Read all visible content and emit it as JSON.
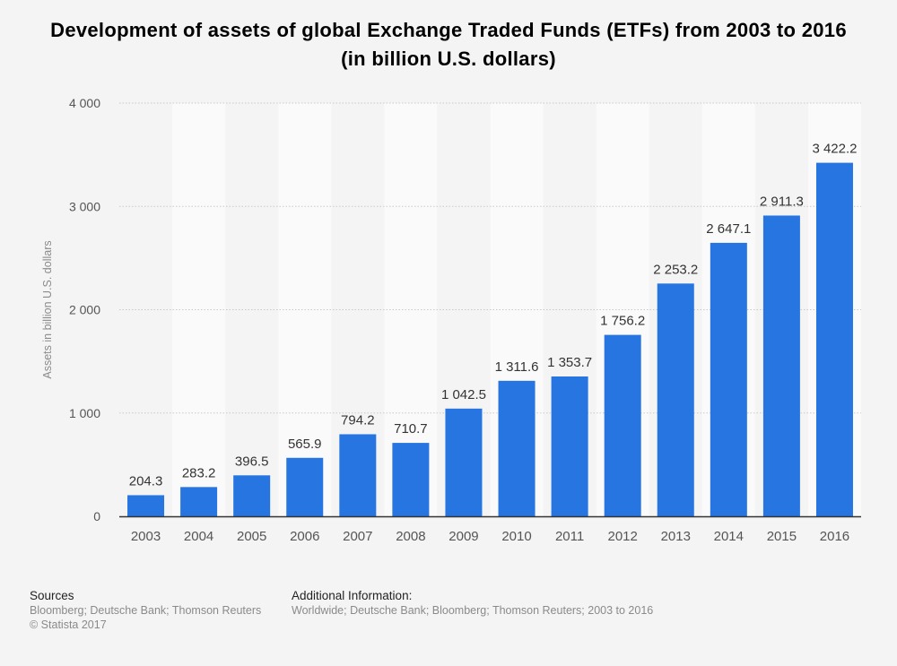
{
  "title": "Development of assets of global Exchange Traded Funds (ETFs) from 2003 to 2016 (in billion U.S. dollars)",
  "footer": {
    "sources_heading": "Sources",
    "sources_text": "Bloomberg; Deutsche Bank; Thomson Reuters",
    "copyright": "© Statista 2017",
    "additional_heading": "Additional Information:",
    "additional_text": "Worldwide; Deutsche Bank; Bloomberg; Thomson Reuters; 2003 to 2016"
  },
  "colors": {
    "bar": "#2775e0",
    "band": "#fafafa",
    "grid": "#c9c9c9",
    "axis": "#333333",
    "tick_text": "#555555",
    "label_text": "#333333",
    "ylabel_text": "#8a8a8a"
  },
  "chart_data": {
    "type": "bar",
    "categories": [
      "2003",
      "2004",
      "2005",
      "2006",
      "2007",
      "2008",
      "2009",
      "2010",
      "2011",
      "2012",
      "2013",
      "2014",
      "2015",
      "2016"
    ],
    "values": [
      204.3,
      283.2,
      396.5,
      565.9,
      794.2,
      710.7,
      1042.5,
      1311.6,
      1353.7,
      1756.2,
      2253.2,
      2647.1,
      2911.3,
      3422.2
    ],
    "value_labels": [
      "204.3",
      "283.2",
      "396.5",
      "565.9",
      "794.2",
      "710.7",
      "1 042.5",
      "1 311.6",
      "1 353.7",
      "1 756.2",
      "2 253.2",
      "2 647.1",
      "2 911.3",
      "3 422.2"
    ],
    "xlabel": "",
    "ylabel": "Assets in billion U.S. dollars",
    "ylim": [
      0,
      4000
    ],
    "yticks": [
      0,
      1000,
      2000,
      3000,
      4000
    ],
    "ytick_labels": [
      "0",
      "1 000",
      "2 000",
      "3 000",
      "4 000"
    ],
    "grid": true
  }
}
